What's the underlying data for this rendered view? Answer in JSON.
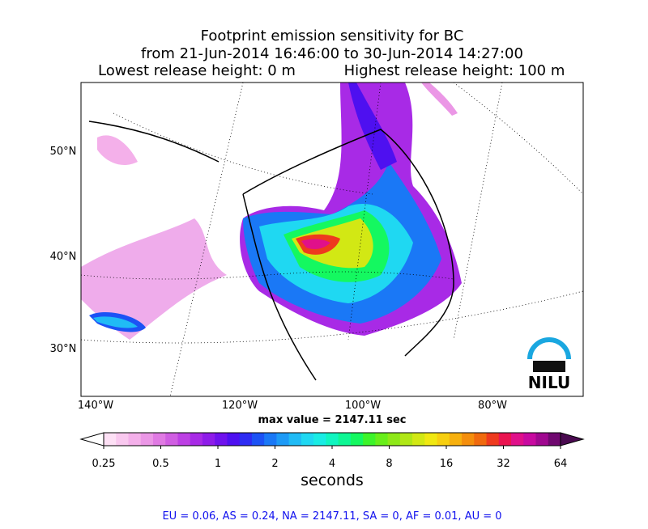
{
  "title": {
    "lines": [
      "Footprint emission sensitivity for BC",
      "from 21-Jun-2014 16:46:00 to 30-Jun-2014 14:27:00"
    ],
    "lowest": "Lowest release height: 0 m",
    "highest": "Highest release height: 100 m"
  },
  "map": {
    "lat_labels": [
      "50°N",
      "40°N",
      "30°N"
    ],
    "lon_labels": [
      "140°W",
      "120°W",
      "100°W",
      "80°W"
    ],
    "logo": "NILU"
  },
  "max_value": "max value = 2147.11 sec",
  "colorbar": {
    "label": "seconds",
    "log_scale": true,
    "lim": [
      0.25,
      64
    ],
    "ticks": [
      0.25,
      0.5,
      1,
      2,
      4,
      8,
      16,
      32,
      64
    ],
    "under_color": "#ffffff",
    "over_color": "#4a0a50",
    "colors": [
      "#fde0f5",
      "#f9c8ef",
      "#f4b0ea",
      "#eb97e6",
      "#e07ae3",
      "#d05ee2",
      "#bd40e4",
      "#a82ae6",
      "#8e1ce9",
      "#6f12ed",
      "#4e10f0",
      "#2e2cf3",
      "#1c52f5",
      "#1a78f6",
      "#1d9af6",
      "#20bbf5",
      "#1fd8f2",
      "#19ece4",
      "#10f5c0",
      "#0ef794",
      "#14f860",
      "#3df42a",
      "#68ee1a",
      "#8ee818",
      "#b0e716",
      "#d2e814",
      "#f0e812",
      "#f7cf10",
      "#f7b00e",
      "#f48e0c",
      "#f06a0e",
      "#ee3a1e",
      "#ea1450",
      "#e0108a",
      "#c80aa0",
      "#a00890",
      "#700870"
    ]
  },
  "footer": "EU = 0.06,  AS = 0.24,  NA = 2147.11,  SA = 0,  AF = 0.01,  AU = 0"
}
